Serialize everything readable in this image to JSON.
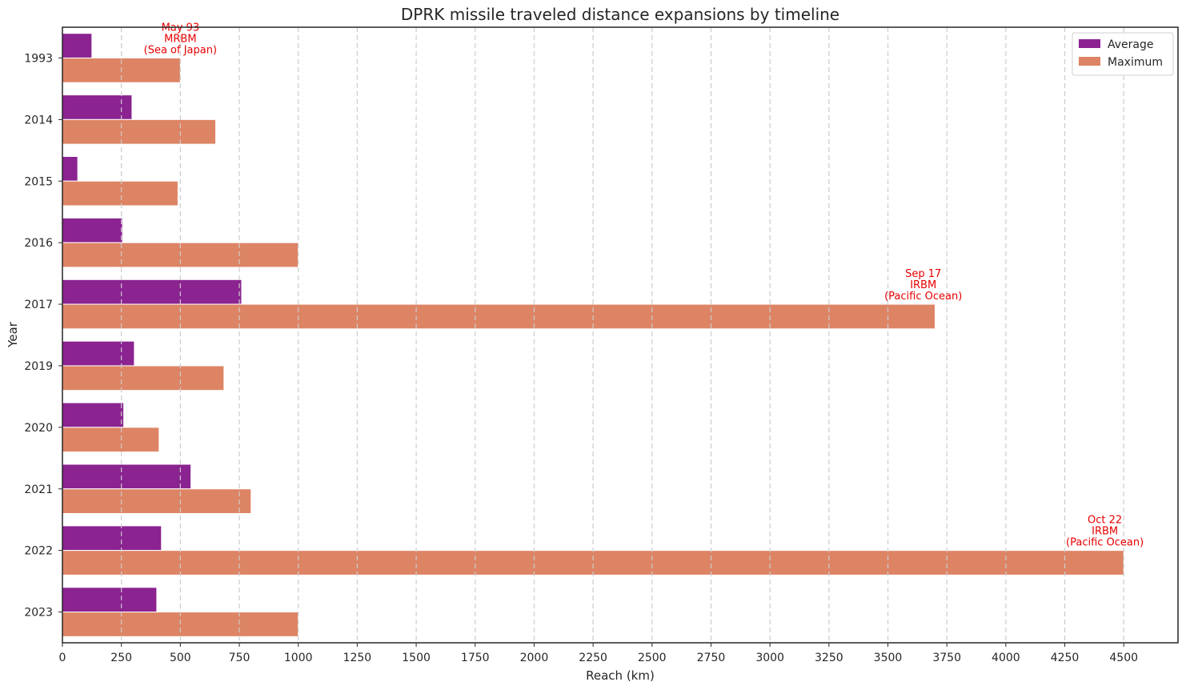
{
  "chart_data": {
    "type": "bar",
    "orientation": "horizontal",
    "title": "DPRK missile traveled distance expansions by timeline",
    "xlabel": "Reach (km)",
    "ylabel": "Year",
    "categories": [
      "1993",
      "2014",
      "2015",
      "2016",
      "2017",
      "2019",
      "2020",
      "2021",
      "2022",
      "2023"
    ],
    "series": [
      {
        "name": "Average",
        "color": "#8b2391",
        "values": [
          125,
          295,
          65,
          255,
          760,
          305,
          260,
          545,
          420,
          400
        ]
      },
      {
        "name": "Maximum",
        "color": "#dd8465",
        "values": [
          500,
          650,
          490,
          1000,
          3700,
          685,
          410,
          800,
          4500,
          1000
        ]
      }
    ],
    "xlim": [
      0,
      4730
    ],
    "xticks": [
      0,
      250,
      500,
      750,
      1000,
      1250,
      1500,
      1750,
      2000,
      2250,
      2500,
      2750,
      3000,
      3250,
      3500,
      3750,
      4000,
      4250,
      4500
    ],
    "grid": "x-dashed",
    "legend_position": "top-right",
    "annotations": [
      {
        "category": "1993",
        "x": 500,
        "lines": [
          "May 93",
          "MRBM",
          "(Sea of Japan)"
        ]
      },
      {
        "category": "2017",
        "x": 3650,
        "lines": [
          "Sep 17",
          "IRBM",
          "(Pacific Ocean)"
        ]
      },
      {
        "category": "2022",
        "x": 4420,
        "lines": [
          "Oct 22",
          "IRBM",
          "(Pacific Ocean)"
        ]
      }
    ]
  }
}
